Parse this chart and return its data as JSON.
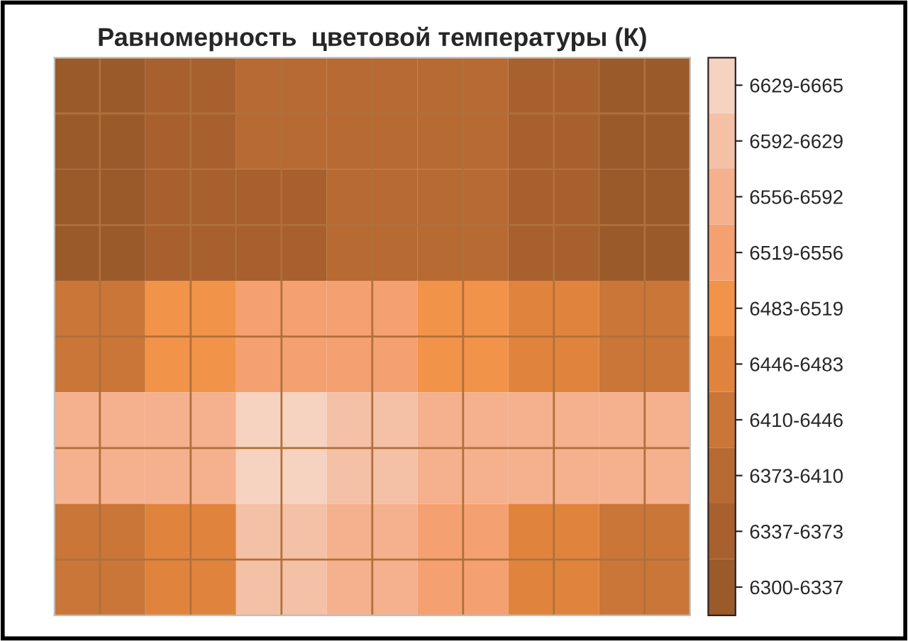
{
  "chart_data": {
    "type": "heatmap",
    "title": "Равномерность  цветовой температуры (К)",
    "categories": [
      null,
      null,
      null,
      null,
      null,
      null,
      null
    ],
    "y_categories": [
      null,
      null,
      null,
      null,
      null
    ],
    "cells": [
      [
        6318.5,
        6355,
        6391.5,
        6391.5,
        6391.5,
        6355,
        6318.5
      ],
      [
        6318.5,
        6355,
        6355,
        6391.5,
        6391.5,
        6355,
        6318.5
      ],
      [
        6428,
        6501,
        6537.5,
        6537.5,
        6501,
        6464.5,
        6428
      ],
      [
        6574,
        6574,
        6647,
        6610.5,
        6574,
        6574,
        6574
      ],
      [
        6428,
        6464.5,
        6610.5,
        6574,
        6537.5,
        6464.5,
        6428
      ]
    ],
    "clim": [
      6300,
      6665
    ],
    "cticks": [
      {
        "value": 6318.5,
        "label": "6300-6337"
      },
      {
        "value": 6355,
        "label": "6337-6373"
      },
      {
        "value": 6391.5,
        "label": "6373-6410"
      },
      {
        "value": 6428,
        "label": "6410-6446"
      },
      {
        "value": 6464.5,
        "label": "6446-6483"
      },
      {
        "value": 6501,
        "label": "6483-6519"
      },
      {
        "value": 6537.5,
        "label": "6519-6556"
      },
      {
        "value": 6574,
        "label": "6556-6592"
      },
      {
        "value": 6610.5,
        "label": "6592-6629"
      },
      {
        "value": 6647,
        "label": "6629-6665"
      }
    ],
    "colors": [
      "#9a5a2a",
      "#a8612e",
      "#b86a33",
      "#c97638",
      "#e0843d",
      "#f2934a",
      "#f5a070",
      "#f5b08e",
      "#f4c0a6",
      "#f6d2c0"
    ],
    "grid": true
  }
}
